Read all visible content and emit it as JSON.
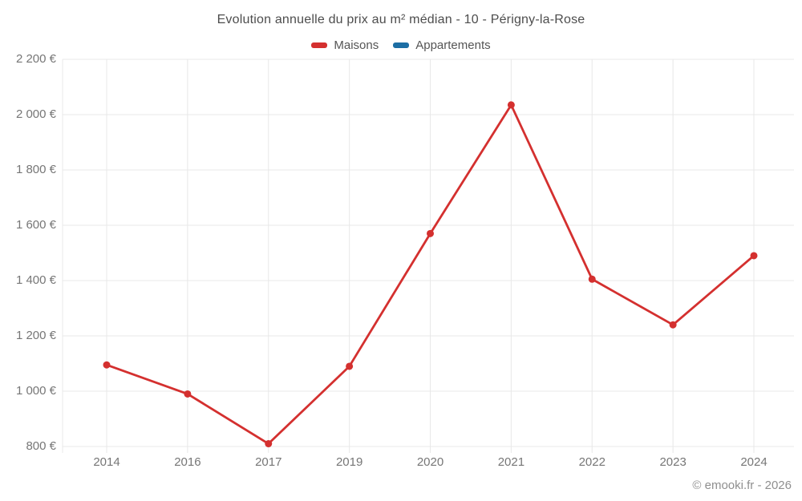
{
  "title": "Evolution annuelle du prix au m² médian - 10 - Périgny-la-Rose",
  "legend": {
    "items": [
      {
        "label": "Maisons",
        "color": "#d4302f"
      },
      {
        "label": "Appartements",
        "color": "#1c6ea4"
      }
    ]
  },
  "footer": {
    "copyright": "© emooki.fr - 2026"
  },
  "chart_data": {
    "type": "line",
    "title": "Evolution annuelle du prix au m² médian - 10 - Périgny-la-Rose",
    "categories": [
      "2014",
      "2016",
      "2017",
      "2019",
      "2020",
      "2021",
      "2022",
      "2023",
      "2024"
    ],
    "series": [
      {
        "name": "Maisons",
        "color": "#d4302f",
        "values": [
          1095,
          990,
          810,
          1090,
          1570,
          2035,
          1405,
          1240,
          1490
        ]
      },
      {
        "name": "Appartements",
        "color": "#1c6ea4",
        "values": []
      }
    ],
    "xlabel": "",
    "ylabel": "",
    "ylim": [
      800,
      2200
    ],
    "ytick_step": 200,
    "ytick_labels": [
      "800 €",
      "1 000 €",
      "1 200 €",
      "1 400 €",
      "1 600 €",
      "1 800 €",
      "2 000 €",
      "2 200 €"
    ],
    "grid": true,
    "gridline_color": "#e8e8e8",
    "legend_position": "top",
    "marker": "circle",
    "currency_suffix": " €"
  }
}
